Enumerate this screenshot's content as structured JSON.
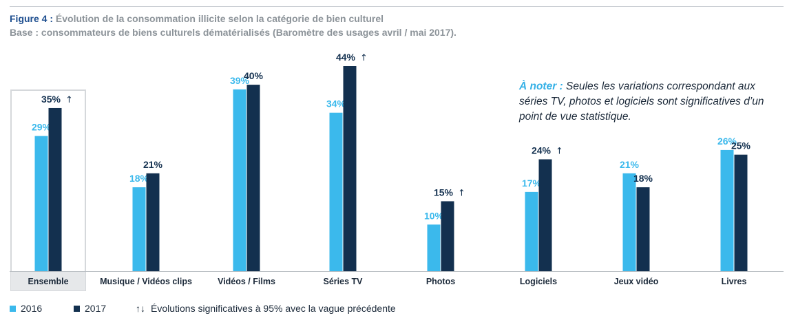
{
  "header": {
    "figure_label": "Figure 4 :",
    "title": "Évolution de la consommation illicite selon la catégorie de bien culturel",
    "subtitle": "Base : consommateurs de biens culturels dématérialisés (Baromètre des usages avril / mai 2017)."
  },
  "note": {
    "label": "À noter :",
    "text": "Seules les variations correspondant aux séries TV, photos et logiciels sont significatives d’un point de vue statistique."
  },
  "legend": {
    "series_2016": "2016",
    "series_2017": "2017",
    "significance_symbol": "↑↓",
    "significance_text": "Évolutions significatives à 95% avec la vague précédente"
  },
  "colors": {
    "2016": "#3bb9ec",
    "2017": "#13304f",
    "label_2016": "#3bb9ec",
    "label_2017": "#13304f",
    "highlight_border": "#d5d8db",
    "baseline": "#b9bec3"
  },
  "chart_data": {
    "type": "bar",
    "categories": [
      "Ensemble",
      "Musique / Vidéos clips",
      "Vidéos / Films",
      "Séries TV",
      "Photos",
      "Logiciels",
      "Jeux vidéo",
      "Livres"
    ],
    "series": [
      {
        "name": "2016",
        "values": [
          29,
          18,
          39,
          34,
          10,
          17,
          21,
          26
        ]
      },
      {
        "name": "2017",
        "values": [
          35,
          21,
          40,
          44,
          15,
          24,
          18,
          25
        ]
      }
    ],
    "value_labels": {
      "2016": [
        "29%",
        "18%",
        "39%",
        "34%",
        "10%",
        "17%",
        "21%",
        "26%"
      ],
      "2017": [
        "35%",
        "21%",
        "40%",
        "44%",
        "15%",
        "24%",
        "18%",
        "25%"
      ]
    },
    "significance_2017": [
      "↑",
      "",
      "",
      "↑",
      "↑",
      "↑",
      "",
      ""
    ],
    "highlighted_category": "Ensemble",
    "ylim": [
      0,
      46
    ],
    "grid": false,
    "legend_position": "bottom-left"
  }
}
